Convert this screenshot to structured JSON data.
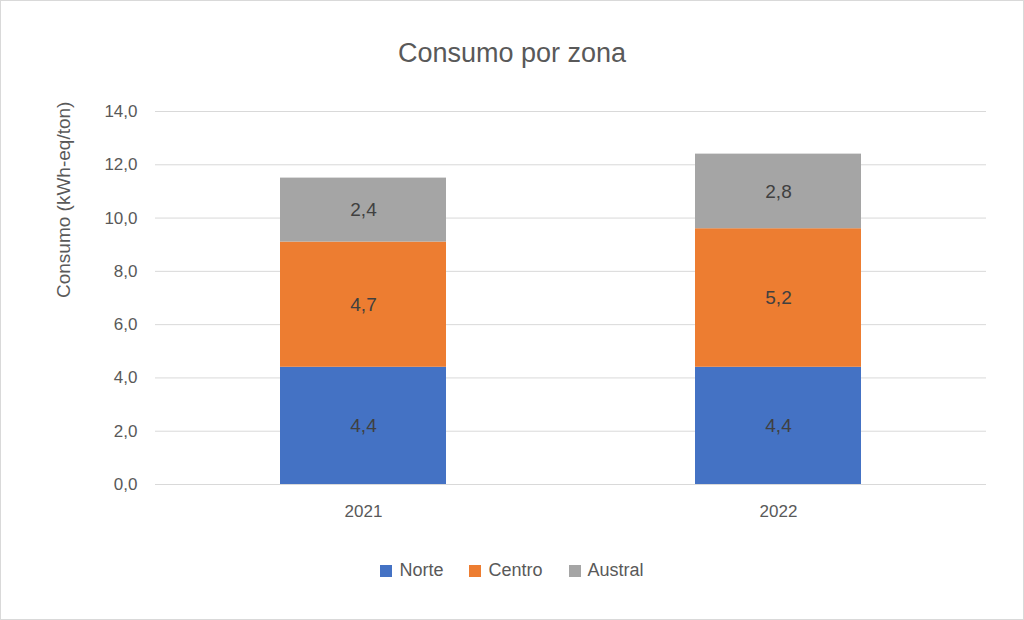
{
  "chart_data": {
    "type": "bar",
    "title": "Consumo por zona",
    "y_label": "Consumo (kWh-eq/ton)",
    "categories": [
      "2021",
      "2022"
    ],
    "series": [
      {
        "name": "Norte",
        "color": "#4472c4",
        "values": [
          4.4,
          4.4
        ],
        "value_labels": [
          "4,4",
          "4,4"
        ]
      },
      {
        "name": "Centro",
        "color": "#ed7d31",
        "values": [
          4.7,
          5.2
        ],
        "value_labels": [
          "4,7",
          "5,2"
        ]
      },
      {
        "name": "Austral",
        "color": "#a5a5a5",
        "values": [
          2.4,
          2.8
        ],
        "value_labels": [
          "2,4",
          "2,8"
        ]
      }
    ],
    "ylim": [
      0,
      14
    ],
    "yticks": [
      {
        "value": 0,
        "label": "0,0"
      },
      {
        "value": 2,
        "label": "2,0"
      },
      {
        "value": 4,
        "label": "4,0"
      },
      {
        "value": 6,
        "label": "6,0"
      },
      {
        "value": 8,
        "label": "8,0"
      },
      {
        "value": 10,
        "label": "10,0"
      },
      {
        "value": 12,
        "label": "12,0"
      },
      {
        "value": 14,
        "label": "14,0"
      }
    ],
    "stacked": true,
    "data_labels": true,
    "grid": true,
    "legend": "bottom"
  }
}
